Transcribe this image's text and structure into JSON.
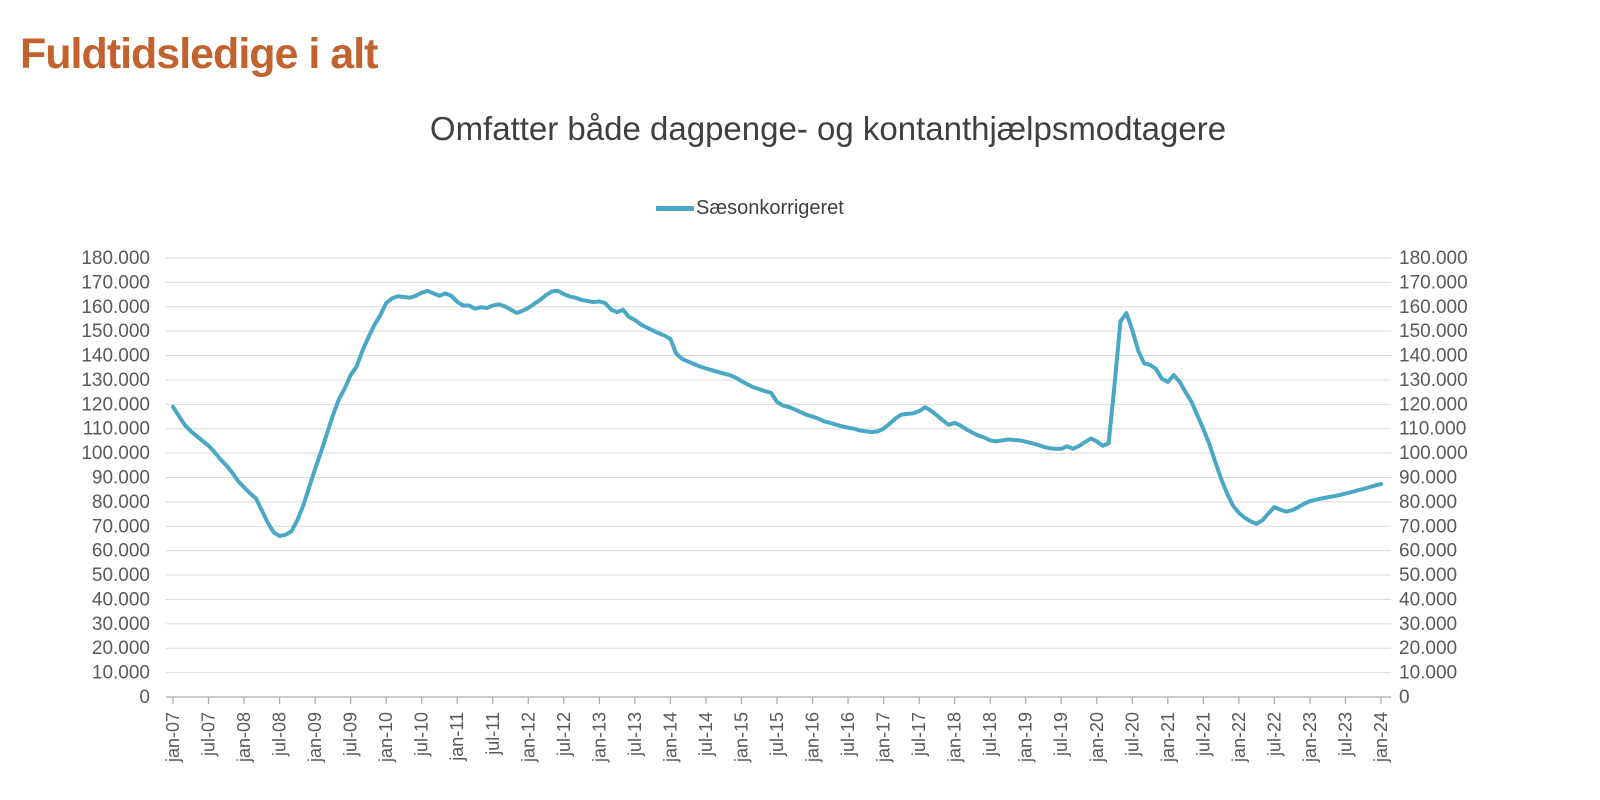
{
  "page": {
    "title": "Fuldtidsledige i alt",
    "title_color": "#C2622E"
  },
  "chart": {
    "subtitle": "Omfatter både dagpenge- og kontanthjælpsmodtagere",
    "legend": {
      "label": "Sæsonkorrigeret"
    },
    "colors": {
      "line": "#4AA8C4",
      "grid": "#D9D9D9",
      "axis": "#ADADAD",
      "tick_label": "#595959",
      "subtitle": "#3F3F3F"
    }
  },
  "chart_data": {
    "type": "line",
    "title": "Omfatter både dagpenge- og kontanthjælpsmodtagere",
    "legend_entries": [
      "Sæsonkorrigeret"
    ],
    "legend_position": "top-center",
    "grid": "horizontal",
    "y_axis_sides": "both",
    "ylim": [
      0,
      180000
    ],
    "y_ticks": [
      0,
      10000,
      20000,
      30000,
      40000,
      50000,
      60000,
      70000,
      80000,
      90000,
      100000,
      110000,
      120000,
      130000,
      140000,
      150000,
      160000,
      170000,
      180000
    ],
    "y_tick_labels": [
      "0",
      "10.000",
      "20.000",
      "30.000",
      "40.000",
      "50.000",
      "60.000",
      "70.000",
      "80.000",
      "90.000",
      "100.000",
      "110.000",
      "120.000",
      "130.000",
      "140.000",
      "150.000",
      "160.000",
      "170.000",
      "180.000"
    ],
    "x_tick_labels": [
      "jan-07",
      "jul-07",
      "jan-08",
      "jul-08",
      "jan-09",
      "jul-09",
      "jan-10",
      "jul-10",
      "jan-11",
      "jul-11",
      "jan-12",
      "jul-12",
      "jan-13",
      "jul-13",
      "jan-14",
      "jul-14",
      "jan-15",
      "jul-15",
      "jan-16",
      "jul-16",
      "jan-17",
      "jul-17",
      "jan-18",
      "jul-18",
      "jan-19",
      "jul-19",
      "jan-20",
      "jul-20",
      "jan-21",
      "jul-21",
      "jan-22",
      "jul-22",
      "jan-23",
      "jul-23",
      "jan-24"
    ],
    "series": [
      {
        "name": "Sæsonkorrigeret",
        "color": "#4AA8C4",
        "frequency": "monthly",
        "x_start": "jan-07",
        "x_end": "jan-24",
        "values": [
          119000,
          115200,
          111500,
          109000,
          107000,
          105000,
          103000,
          100500,
          97500,
          95000,
          92000,
          88500,
          86000,
          83500,
          81500,
          76500,
          71500,
          67500,
          66000,
          66500,
          68000,
          72500,
          78500,
          86000,
          93500,
          100500,
          108000,
          115500,
          122000,
          126500,
          132000,
          135500,
          142000,
          147500,
          152500,
          156500,
          161500,
          163500,
          164300,
          164000,
          163700,
          164500,
          165800,
          166500,
          165500,
          164500,
          165500,
          164500,
          162000,
          160500,
          160500,
          159200,
          159800,
          159500,
          160500,
          161000,
          160200,
          158900,
          157500,
          158300,
          159500,
          161200,
          162800,
          164800,
          166300,
          166500,
          165200,
          164200,
          163700,
          162800,
          162400,
          161900,
          162200,
          161500,
          158800,
          157800,
          158800,
          155800,
          154600,
          152800,
          151500,
          150300,
          149200,
          148200,
          146800,
          140700,
          138600,
          137500,
          136500,
          135500,
          134700,
          134000,
          133300,
          132600,
          132000,
          131000,
          129500,
          128200,
          127000,
          126200,
          125400,
          124700,
          121000,
          119500,
          118900,
          117900,
          116800,
          115700,
          115000,
          114100,
          113000,
          112400,
          111600,
          111000,
          110400,
          110000,
          109300,
          108900,
          108600,
          108900,
          110000,
          112000,
          114200,
          115800,
          116100,
          116300,
          117200,
          118800,
          117400,
          115500,
          113400,
          111600,
          112400,
          111300,
          109700,
          108400,
          107200,
          106400,
          105200,
          104800,
          105200,
          105600,
          105400,
          105200,
          104700,
          104100,
          103400,
          102600,
          102000,
          101800,
          101800,
          102800,
          101800,
          102900,
          104500,
          106000,
          104800,
          103000,
          104000,
          128000,
          154000,
          157400,
          150500,
          142000,
          136800,
          136200,
          134500,
          130500,
          129200,
          132000,
          129200,
          125000,
          121000,
          115400,
          109900,
          103800,
          96500,
          89500,
          83500,
          78500,
          75500,
          73500,
          72000,
          71000,
          72500,
          75300,
          77900,
          76800,
          76000,
          76600,
          77800,
          79200,
          80300,
          80900,
          81400,
          81900,
          82300,
          82800,
          83400,
          84000,
          84700,
          85300,
          86000,
          86700,
          87300
        ]
      }
    ]
  }
}
